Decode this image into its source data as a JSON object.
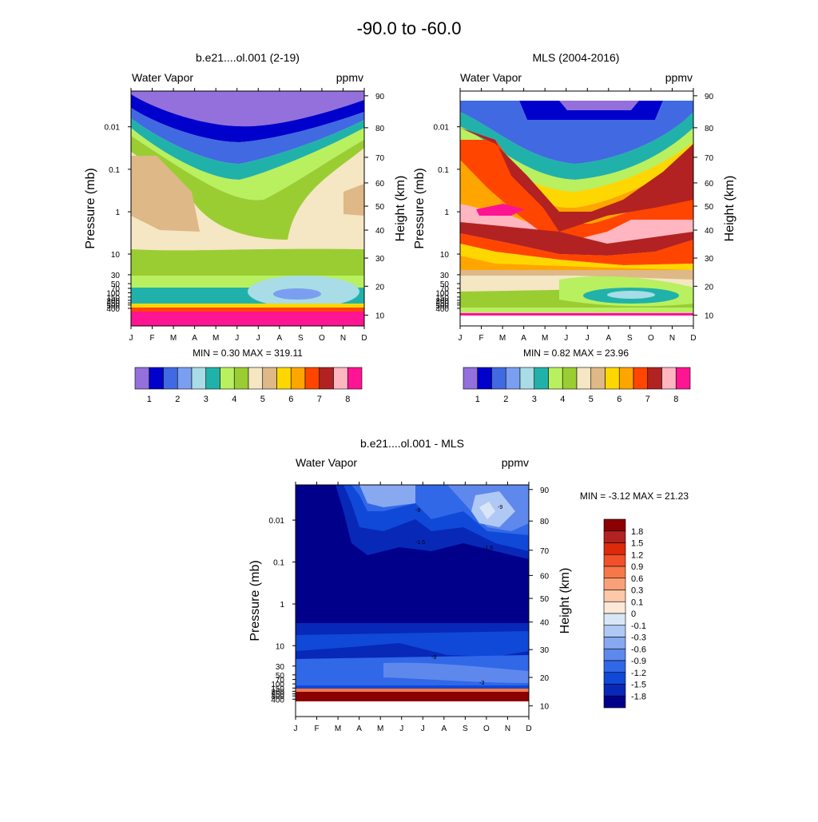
{
  "figure_title": "-90.0 to -60.0",
  "panels": {
    "model": {
      "title": "b.e21....ol.001 (2-19)",
      "left_label": "Water Vapor",
      "right_label": "ppmv",
      "y_axis_label": "Pressure (mb)",
      "y2_axis_label": "Height (km)",
      "min_max": "MIN =   0.30  MAX = 319.11"
    },
    "mls": {
      "title": "MLS (2004-2016)",
      "left_label": "Water Vapor",
      "right_label": "ppmv",
      "y_axis_label": "Pressure (mb)",
      "y2_axis_label": "Height (km)",
      "min_max": "MIN =   0.82  MAX =  23.96"
    },
    "diff": {
      "title": "b.e21....ol.001 - MLS",
      "left_label": "Water Vapor",
      "right_label": "ppmv",
      "y_axis_label": "Pressure (mb)",
      "y2_axis_label": "Height (km)",
      "min_max": "MIN =  -3.12  MAX =  21.23"
    }
  },
  "colorbar_top": {
    "colors": [
      "#9370DB",
      "#0000CD",
      "#4169E1",
      "#7B9FF0",
      "#A8DCE6",
      "#20B2AA",
      "#B8F060",
      "#9ACD32",
      "#F5E6C4",
      "#DEB887",
      "#FFD700",
      "#FFA500",
      "#FF4500",
      "#B22222",
      "#FFB6C1",
      "#FF1493"
    ],
    "labels": [
      "1",
      "2",
      "3",
      "4",
      "5",
      "6",
      "7",
      "8"
    ]
  },
  "colorbar_diff": {
    "colors": [
      "#8B0000",
      "#B22222",
      "#DC2A0A",
      "#F0502A",
      "#F57848",
      "#FAA078",
      "#FCC8A8",
      "#FDE8D8",
      "#D8E6F8",
      "#B0C8F4",
      "#88A8F0",
      "#5E88EC",
      "#3068E8",
      "#1048D8",
      "#0828B8",
      "#00008B"
    ],
    "labels": [
      "1.8",
      "1.5",
      "1.2",
      "0.9",
      "0.6",
      "0.3",
      "0.1",
      "0",
      "-0.1",
      "-0.3",
      "-0.6",
      "-0.9",
      "-1.2",
      "-1.5",
      "-1.8"
    ]
  },
  "chart_data": [
    {
      "type": "heatmap",
      "title": "b.e21....ol.001 (2-19)",
      "xlabel": "",
      "ylabel": "Pressure (mb)",
      "y2label": "Height (km)",
      "x_ticks": [
        "J",
        "F",
        "M",
        "A",
        "M",
        "J",
        "J",
        "A",
        "S",
        "O",
        "N",
        "D"
      ],
      "y_ticks": [
        "0.01",
        "0.1",
        "1",
        "10",
        "30",
        "50",
        "70",
        "100",
        "150",
        "200",
        "250",
        "300",
        "400"
      ],
      "y2_ticks": [
        "10",
        "20",
        "30",
        "40",
        "50",
        "60",
        "70",
        "80",
        "90"
      ],
      "units": "ppmv",
      "min": 0.3,
      "max": 319.11
    },
    {
      "type": "heatmap",
      "title": "MLS (2004-2016)",
      "xlabel": "",
      "ylabel": "Pressure (mb)",
      "y2label": "Height (km)",
      "x_ticks": [
        "J",
        "F",
        "M",
        "A",
        "M",
        "J",
        "J",
        "A",
        "S",
        "O",
        "N",
        "D"
      ],
      "y_ticks": [
        "0.01",
        "0.1",
        "1",
        "10",
        "30",
        "50",
        "70",
        "100",
        "150",
        "200",
        "250",
        "300",
        "400"
      ],
      "y2_ticks": [
        "10",
        "20",
        "30",
        "40",
        "50",
        "60",
        "70",
        "80",
        "90"
      ],
      "units": "ppmv",
      "min": 0.82,
      "max": 23.96
    },
    {
      "type": "heatmap",
      "title": "b.e21....ol.001 - MLS",
      "xlabel": "",
      "ylabel": "Pressure (mb)",
      "y2label": "Height (km)",
      "x_ticks": [
        "J",
        "F",
        "M",
        "A",
        "M",
        "J",
        "J",
        "A",
        "S",
        "O",
        "N",
        "D"
      ],
      "y_ticks": [
        "0.01",
        "0.1",
        "1",
        "10",
        "30",
        "50",
        "70",
        "100",
        "150",
        "200",
        "250",
        "300",
        "400"
      ],
      "y2_ticks": [
        "10",
        "20",
        "30",
        "40",
        "50",
        "60",
        "70",
        "80",
        "90"
      ],
      "units": "ppmv",
      "min": -3.12,
      "max": 21.23,
      "contour_labels": [
        "-9",
        "-1.5",
        "-3"
      ]
    }
  ]
}
